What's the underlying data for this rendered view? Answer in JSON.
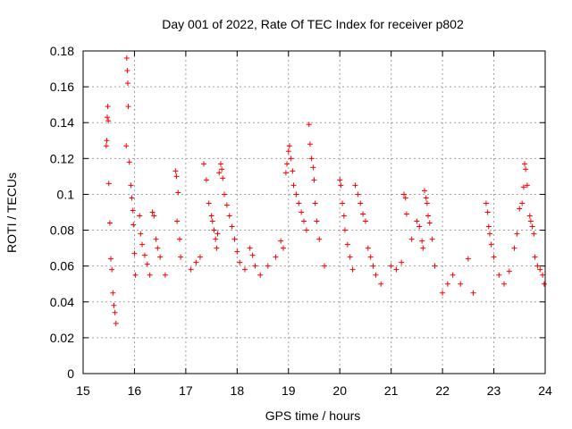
{
  "chart_data": {
    "type": "scatter",
    "title": "Day 001 of 2022, Rate Of TEC Index for receiver p802",
    "xlabel": "GPS time / hours",
    "ylabel": "ROTI / TECUs",
    "xlim": [
      15,
      24
    ],
    "ylim": [
      0,
      0.18
    ],
    "x_ticks": [
      "15",
      "16",
      "17",
      "18",
      "19",
      "20",
      "21",
      "22",
      "23",
      "24"
    ],
    "y_ticks": [
      "0",
      "0.02",
      "0.04",
      "0.06",
      "0.08",
      "0.1",
      "0.12",
      "0.14",
      "0.16",
      "0.18"
    ],
    "grid": true,
    "legend": "none",
    "marker": "plus",
    "color": "#ff0000",
    "series": [
      {
        "points": [
          [
            15.45,
            0.127
          ],
          [
            15.46,
            0.13
          ],
          [
            15.47,
            0.143
          ],
          [
            15.48,
            0.149
          ],
          [
            15.49,
            0.141
          ],
          [
            15.5,
            0.106
          ],
          [
            15.52,
            0.084
          ],
          [
            15.54,
            0.064
          ],
          [
            15.56,
            0.058
          ],
          [
            15.58,
            0.045
          ],
          [
            15.6,
            0.038
          ],
          [
            15.62,
            0.034
          ],
          [
            15.64,
            0.028
          ],
          [
            15.85,
            0.176
          ],
          [
            15.86,
            0.169
          ],
          [
            15.87,
            0.162
          ],
          [
            15.88,
            0.149
          ],
          [
            15.84,
            0.127
          ],
          [
            15.9,
            0.118
          ],
          [
            15.93,
            0.105
          ],
          [
            15.95,
            0.098
          ],
          [
            15.97,
            0.091
          ],
          [
            15.98,
            0.083
          ],
          [
            16.0,
            0.067
          ],
          [
            16.02,
            0.055
          ],
          [
            16.1,
            0.088
          ],
          [
            16.12,
            0.078
          ],
          [
            16.15,
            0.072
          ],
          [
            16.2,
            0.066
          ],
          [
            16.25,
            0.061
          ],
          [
            16.3,
            0.055
          ],
          [
            16.35,
            0.09
          ],
          [
            16.38,
            0.088
          ],
          [
            16.42,
            0.075
          ],
          [
            16.45,
            0.07
          ],
          [
            16.5,
            0.065
          ],
          [
            16.6,
            0.055
          ],
          [
            16.8,
            0.113
          ],
          [
            16.82,
            0.11
          ],
          [
            16.85,
            0.101
          ],
          [
            16.83,
            0.085
          ],
          [
            16.88,
            0.075
          ],
          [
            16.9,
            0.065
          ],
          [
            17.1,
            0.058
          ],
          [
            17.2,
            0.062
          ],
          [
            17.28,
            0.065
          ],
          [
            17.35,
            0.117
          ],
          [
            17.4,
            0.108
          ],
          [
            17.45,
            0.095
          ],
          [
            17.5,
            0.088
          ],
          [
            17.52,
            0.085
          ],
          [
            17.55,
            0.08
          ],
          [
            17.58,
            0.075
          ],
          [
            17.6,
            0.07
          ],
          [
            17.62,
            0.078
          ],
          [
            17.65,
            0.112
          ],
          [
            17.68,
            0.117
          ],
          [
            17.7,
            0.114
          ],
          [
            17.72,
            0.109
          ],
          [
            17.75,
            0.1
          ],
          [
            17.8,
            0.094
          ],
          [
            17.85,
            0.088
          ],
          [
            17.9,
            0.082
          ],
          [
            17.95,
            0.075
          ],
          [
            18.0,
            0.068
          ],
          [
            18.05,
            0.062
          ],
          [
            18.15,
            0.058
          ],
          [
            18.25,
            0.07
          ],
          [
            18.3,
            0.066
          ],
          [
            18.35,
            0.06
          ],
          [
            18.45,
            0.055
          ],
          [
            18.6,
            0.06
          ],
          [
            18.75,
            0.065
          ],
          [
            18.85,
            0.074
          ],
          [
            18.9,
            0.07
          ],
          [
            18.95,
            0.112
          ],
          [
            18.97,
            0.117
          ],
          [
            19.0,
            0.124
          ],
          [
            19.02,
            0.127
          ],
          [
            19.05,
            0.12
          ],
          [
            19.08,
            0.113
          ],
          [
            19.1,
            0.105
          ],
          [
            19.15,
            0.1
          ],
          [
            19.2,
            0.095
          ],
          [
            19.25,
            0.09
          ],
          [
            19.3,
            0.085
          ],
          [
            19.35,
            0.08
          ],
          [
            19.4,
            0.139
          ],
          [
            19.42,
            0.128
          ],
          [
            19.45,
            0.12
          ],
          [
            19.48,
            0.115
          ],
          [
            19.5,
            0.108
          ],
          [
            19.52,
            0.095
          ],
          [
            19.55,
            0.085
          ],
          [
            19.6,
            0.075
          ],
          [
            19.7,
            0.06
          ],
          [
            20.0,
            0.108
          ],
          [
            20.02,
            0.105
          ],
          [
            20.05,
            0.095
          ],
          [
            20.08,
            0.088
          ],
          [
            20.1,
            0.08
          ],
          [
            20.15,
            0.072
          ],
          [
            20.2,
            0.065
          ],
          [
            20.25,
            0.058
          ],
          [
            20.3,
            0.105
          ],
          [
            20.35,
            0.1
          ],
          [
            20.4,
            0.095
          ],
          [
            20.45,
            0.089
          ],
          [
            20.5,
            0.085
          ],
          [
            20.55,
            0.07
          ],
          [
            20.6,
            0.065
          ],
          [
            20.65,
            0.06
          ],
          [
            20.7,
            0.055
          ],
          [
            20.8,
            0.05
          ],
          [
            21.0,
            0.06
          ],
          [
            21.1,
            0.058
          ],
          [
            21.2,
            0.062
          ],
          [
            21.25,
            0.1
          ],
          [
            21.28,
            0.098
          ],
          [
            21.3,
            0.089
          ],
          [
            21.4,
            0.075
          ],
          [
            21.5,
            0.085
          ],
          [
            21.55,
            0.082
          ],
          [
            21.6,
            0.074
          ],
          [
            21.62,
            0.07
          ],
          [
            21.65,
            0.102
          ],
          [
            21.68,
            0.098
          ],
          [
            21.7,
            0.095
          ],
          [
            21.72,
            0.088
          ],
          [
            21.75,
            0.084
          ],
          [
            21.8,
            0.075
          ],
          [
            21.85,
            0.06
          ],
          [
            22.0,
            0.045
          ],
          [
            22.1,
            0.05
          ],
          [
            22.2,
            0.055
          ],
          [
            22.35,
            0.05
          ],
          [
            22.5,
            0.064
          ],
          [
            22.6,
            0.045
          ],
          [
            22.85,
            0.095
          ],
          [
            22.88,
            0.09
          ],
          [
            22.9,
            0.082
          ],
          [
            22.92,
            0.078
          ],
          [
            22.95,
            0.072
          ],
          [
            23.0,
            0.065
          ],
          [
            23.1,
            0.055
          ],
          [
            23.2,
            0.05
          ],
          [
            23.3,
            0.057
          ],
          [
            23.4,
            0.07
          ],
          [
            23.45,
            0.078
          ],
          [
            23.5,
            0.092
          ],
          [
            23.55,
            0.095
          ],
          [
            23.58,
            0.104
          ],
          [
            23.6,
            0.117
          ],
          [
            23.62,
            0.114
          ],
          [
            23.65,
            0.105
          ],
          [
            23.7,
            0.088
          ],
          [
            23.72,
            0.085
          ],
          [
            23.75,
            0.082
          ],
          [
            23.78,
            0.078
          ],
          [
            23.8,
            0.065
          ],
          [
            23.85,
            0.06
          ],
          [
            23.9,
            0.058
          ],
          [
            23.95,
            0.055
          ],
          [
            23.98,
            0.05
          ]
        ]
      }
    ]
  }
}
